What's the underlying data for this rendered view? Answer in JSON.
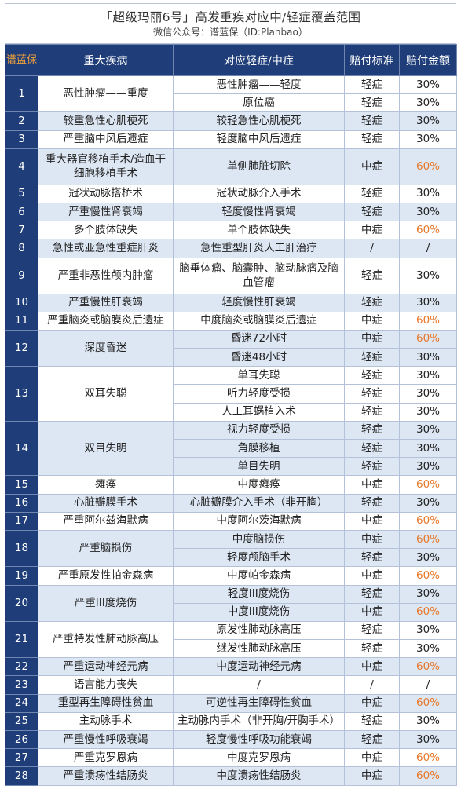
{
  "header": {
    "title": "「超级玛丽6号」高发重疾对应中/轻症覆盖范围",
    "subtitle": "微信公众号：谱蓝保（ID:Planbao）"
  },
  "table": {
    "columns": [
      "谱蓝保",
      "重大疾病",
      "对应轻症/中症",
      "赔付标准",
      "赔付金额"
    ],
    "groups": [
      {
        "no": "1",
        "disease": "恶性肿瘤——重度",
        "rows": [
          {
            "mild": "恶性肿瘤——轻度",
            "standard": "轻症",
            "amount": "30%"
          },
          {
            "mild": "原位癌",
            "standard": "轻症",
            "amount": "30%"
          }
        ]
      },
      {
        "no": "2",
        "disease": "较重急性心肌梗死",
        "rows": [
          {
            "mild": "较轻急性心肌梗死",
            "standard": "轻症",
            "amount": "30%"
          }
        ]
      },
      {
        "no": "3",
        "disease": "严重脑中风后遗症",
        "rows": [
          {
            "mild": "轻度脑中风后遗症",
            "standard": "轻症",
            "amount": "30%"
          }
        ]
      },
      {
        "no": "4",
        "disease": "重大器官移植手术/造血干细胞移植手术",
        "rows": [
          {
            "mild": "单侧肺脏切除",
            "standard": "中症",
            "amount": "60%"
          }
        ]
      },
      {
        "no": "5",
        "disease": "冠状动脉搭桥术",
        "rows": [
          {
            "mild": "冠状动脉介入手术",
            "standard": "轻症",
            "amount": "30%"
          }
        ]
      },
      {
        "no": "6",
        "disease": "严重慢性肾衰竭",
        "rows": [
          {
            "mild": "轻度慢性肾衰竭",
            "standard": "轻症",
            "amount": "30%"
          }
        ]
      },
      {
        "no": "7",
        "disease": "多个肢体缺失",
        "rows": [
          {
            "mild": "单个肢体缺失",
            "standard": "中症",
            "amount": "60%"
          }
        ]
      },
      {
        "no": "8",
        "disease": "急性或亚急性重症肝炎",
        "rows": [
          {
            "mild": "急性重型肝炎人工肝治疗",
            "standard": "/",
            "amount": "/"
          }
        ]
      },
      {
        "no": "9",
        "disease": "严重非恶性颅内肿瘤",
        "rows": [
          {
            "mild": "脑垂体瘤、脑囊肿、脑动脉瘤及脑血管瘤",
            "standard": "轻症",
            "amount": "30%"
          }
        ]
      },
      {
        "no": "10",
        "disease": "严重慢性肝衰竭",
        "rows": [
          {
            "mild": "轻度慢性肝衰竭",
            "standard": "轻症",
            "amount": "30%"
          }
        ]
      },
      {
        "no": "11",
        "disease": "严重脑炎或脑膜炎后遗症",
        "rows": [
          {
            "mild": "中度脑炎或脑膜炎后遗症",
            "standard": "中症",
            "amount": "60%"
          }
        ]
      },
      {
        "no": "12",
        "disease": "深度昏迷",
        "rows": [
          {
            "mild": "昏迷72小时",
            "standard": "中症",
            "amount": "60%"
          },
          {
            "mild": "昏迷48小时",
            "standard": "轻症",
            "amount": "30%"
          }
        ]
      },
      {
        "no": "13",
        "disease": "双耳失聪",
        "rows": [
          {
            "mild": "单耳失聪",
            "standard": "轻症",
            "amount": "30%"
          },
          {
            "mild": "听力轻度受损",
            "standard": "轻症",
            "amount": "30%"
          },
          {
            "mild": "人工耳蜗植入术",
            "standard": "轻症",
            "amount": "30%"
          }
        ]
      },
      {
        "no": "14",
        "disease": "双目失明",
        "rows": [
          {
            "mild": "视力轻度受损",
            "standard": "轻症",
            "amount": "30%"
          },
          {
            "mild": "角膜移植",
            "standard": "轻症",
            "amount": "30%"
          },
          {
            "mild": "单目失明",
            "standard": "轻症",
            "amount": "30%"
          }
        ]
      },
      {
        "no": "15",
        "disease": "瘫痪",
        "rows": [
          {
            "mild": "中度瘫痪",
            "standard": "中症",
            "amount": "60%"
          }
        ]
      },
      {
        "no": "16",
        "disease": "心脏瓣膜手术",
        "rows": [
          {
            "mild": "心脏瓣膜介入手术（非开胸）",
            "standard": "轻症",
            "amount": "30%"
          }
        ]
      },
      {
        "no": "17",
        "disease": "严重阿尔兹海默病",
        "rows": [
          {
            "mild": "中度阿尔茨海默病",
            "standard": "中症",
            "amount": "60%"
          }
        ]
      },
      {
        "no": "18",
        "disease": "严重脑损伤",
        "rows": [
          {
            "mild": "中度脑损伤",
            "standard": "中症",
            "amount": "60%"
          },
          {
            "mild": "轻度颅脑手术",
            "standard": "轻症",
            "amount": "30%"
          }
        ]
      },
      {
        "no": "19",
        "disease": "严重原发性帕金森病",
        "rows": [
          {
            "mild": "中度帕金森病",
            "standard": "中症",
            "amount": "60%"
          }
        ]
      },
      {
        "no": "20",
        "disease": "严重III度烧伤",
        "rows": [
          {
            "mild": "轻度III度烧伤",
            "standard": "轻症",
            "amount": "30%"
          },
          {
            "mild": "中度III度烧伤",
            "standard": "中症",
            "amount": "60%"
          }
        ]
      },
      {
        "no": "21",
        "disease": "严重特发性肺动脉高压",
        "rows": [
          {
            "mild": "原发性肺动脉高压",
            "standard": "轻症",
            "amount": "30%"
          },
          {
            "mild": "继发性肺动脉高压",
            "standard": "轻症",
            "amount": "30%"
          }
        ]
      },
      {
        "no": "22",
        "disease": "严重运动神经元病",
        "rows": [
          {
            "mild": "中度运动神经元病",
            "standard": "中症",
            "amount": "60%"
          }
        ]
      },
      {
        "no": "23",
        "disease": "语言能力丧失",
        "rows": [
          {
            "mild": "/",
            "standard": "/",
            "amount": "/"
          }
        ]
      },
      {
        "no": "24",
        "disease": "重型再生障碍性贫血",
        "rows": [
          {
            "mild": "可逆性再生障碍性贫血",
            "standard": "中症",
            "amount": "60%"
          }
        ]
      },
      {
        "no": "25",
        "disease": "主动脉手术",
        "rows": [
          {
            "mild": "主动脉内手术（非开胸/开胸手术）",
            "standard": "轻症",
            "amount": "30%"
          }
        ]
      },
      {
        "no": "26",
        "disease": "严重慢性呼吸衰竭",
        "rows": [
          {
            "mild": "轻度慢性呼吸功能衰竭",
            "standard": "轻症",
            "amount": "30%"
          }
        ]
      },
      {
        "no": "27",
        "disease": "严重克罗恩病",
        "rows": [
          {
            "mild": "中度克罗恩病",
            "standard": "中症",
            "amount": "60%"
          }
        ]
      },
      {
        "no": "28",
        "disease": "严重溃疡性结肠炎",
        "rows": [
          {
            "mild": "中度溃疡性结肠炎",
            "standard": "中症",
            "amount": "60%"
          }
        ]
      }
    ]
  },
  "colors": {
    "header_bg": "#1f3d78",
    "stripe": "#dde7f3",
    "brand_orange": "#f2a23a",
    "amount_orange": "#e8782a"
  }
}
